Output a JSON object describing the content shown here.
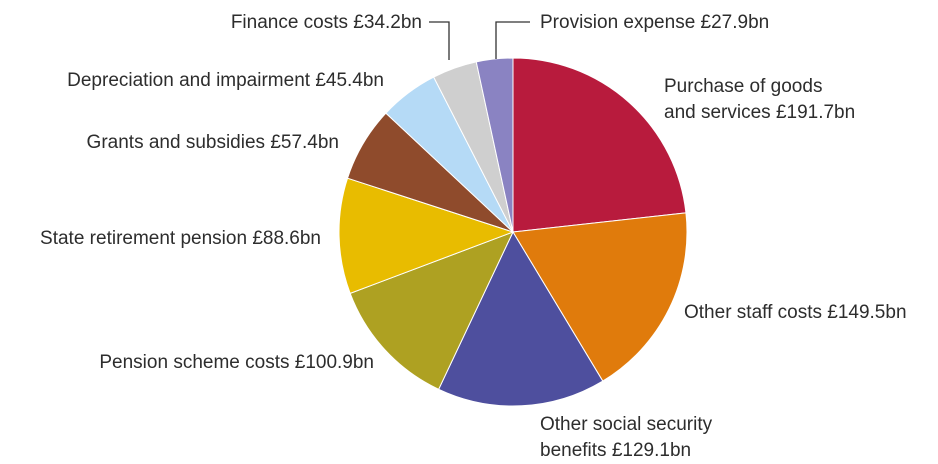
{
  "chart_data": {
    "type": "pie",
    "title": "",
    "unit": "£bn",
    "slices": [
      {
        "label_lines": [
          "Purchase of goods",
          "and services £191.7bn"
        ],
        "name": "Purchase of goods and services",
        "value": 191.7,
        "color": "#b81b3d"
      },
      {
        "label_lines": [
          "Other staff costs £149.5bn"
        ],
        "name": "Other staff costs",
        "value": 149.5,
        "color": "#e07b0c"
      },
      {
        "label_lines": [
          "Other social security",
          "benefits £129.1bn"
        ],
        "name": "Other social security benefits",
        "value": 129.1,
        "color": "#4e4f9e"
      },
      {
        "label_lines": [
          "Pension scheme costs £100.9bn"
        ],
        "name": "Pension scheme costs",
        "value": 100.9,
        "color": "#aea122"
      },
      {
        "label_lines": [
          "State retirement pension £88.6bn"
        ],
        "name": "State retirement pension",
        "value": 88.6,
        "color": "#e8bc00"
      },
      {
        "label_lines": [
          "Grants and subsidies £57.4bn"
        ],
        "name": "Grants and subsidies",
        "value": 57.4,
        "color": "#8f4b2c"
      },
      {
        "label_lines": [
          "Depreciation and impairment £45.4bn"
        ],
        "name": "Depreciation and impairment",
        "value": 45.4,
        "color": "#b5daf6"
      },
      {
        "label_lines": [
          "Finance costs £34.2bn"
        ],
        "name": "Finance costs",
        "value": 34.2,
        "color": "#cfcfcf"
      },
      {
        "label_lines": [
          "Provision expense £27.9bn"
        ],
        "name": "Provision expense",
        "value": 27.9,
        "color": "#8a83c2"
      }
    ]
  }
}
